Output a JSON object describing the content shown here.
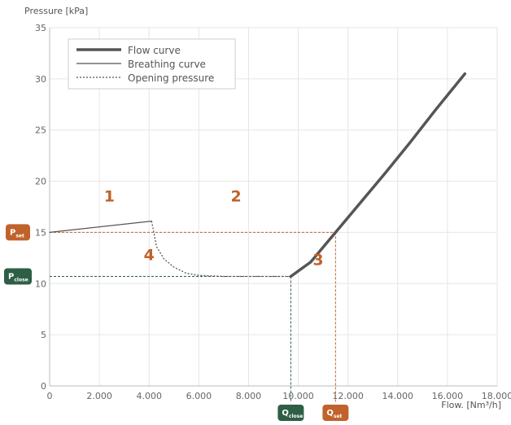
{
  "chart_data": {
    "type": "line",
    "ylabel": "Pressure [kPa]",
    "xlabel": "Flow. [Nm³/h]",
    "xlim": [
      0,
      18000
    ],
    "ylim": [
      0,
      35
    ],
    "x_ticks": [
      0,
      2000,
      4000,
      6000,
      8000,
      10000,
      12000,
      14000,
      16000,
      18000
    ],
    "x_tick_labels": [
      "0",
      "2.000",
      "4.000",
      "6.000",
      "8.000",
      "10.000",
      "12.000",
      "14.000",
      "16.000",
      "18.000"
    ],
    "y_ticks": [
      0,
      5,
      10,
      15,
      20,
      25,
      30,
      35
    ],
    "y_tick_labels": [
      "0",
      "5",
      "10",
      "15",
      "20",
      "25",
      "30",
      "35"
    ],
    "grid": true,
    "legend_position": "top-left",
    "series": [
      {
        "name": "Flow curve",
        "style": "thick-solid",
        "color": "#555555",
        "x": [
          9700,
          10500,
          11500,
          12500,
          13500,
          14500,
          15500,
          16700
        ],
        "y": [
          10.7,
          12.1,
          15.0,
          17.9,
          20.8,
          23.8,
          26.9,
          30.5
        ]
      },
      {
        "name": "Breathing curve",
        "style": "thin-solid",
        "color": "#555555",
        "x": [
          0,
          4100
        ],
        "y": [
          15.0,
          16.1
        ]
      },
      {
        "name": "Opening pressure",
        "style": "dotted",
        "color": "#555555",
        "x": [
          4100,
          4300,
          4600,
          5000,
          5500,
          6000,
          7000,
          8000,
          9700
        ],
        "y": [
          16.1,
          13.6,
          12.4,
          11.6,
          11.0,
          10.8,
          10.7,
          10.7,
          10.7
        ]
      }
    ],
    "reference_lines": [
      {
        "axis": "y",
        "value": 15.0,
        "to_x": 11500,
        "color": "#c0622a"
      },
      {
        "axis": "x",
        "value": 11500,
        "from_y": 15.0,
        "color": "#c0622a"
      },
      {
        "axis": "y",
        "value": 10.7,
        "to_x": 9700,
        "color": "#2e5e45"
      },
      {
        "axis": "x",
        "value": 9700,
        "from_y": 10.7,
        "color": "#2e5e45"
      }
    ],
    "badges": [
      {
        "main": "P",
        "sub": "set",
        "axis": "y",
        "value": 15.0,
        "color": "#c0622a"
      },
      {
        "main": "P",
        "sub": "close",
        "axis": "y",
        "value": 10.7,
        "color": "#2e5e45"
      },
      {
        "main": "Q",
        "sub": "close",
        "axis": "x",
        "value": 9700,
        "color": "#2e5e45"
      },
      {
        "main": "Q",
        "sub": "set",
        "axis": "x",
        "value": 11500,
        "color": "#c0622a"
      }
    ],
    "region_labels": [
      {
        "text": "1",
        "x": 2400,
        "y": 18.0
      },
      {
        "text": "2",
        "x": 7500,
        "y": 18.0
      },
      {
        "text": "3",
        "x": 10800,
        "y": 11.8
      },
      {
        "text": "4",
        "x": 4000,
        "y": 12.3
      }
    ],
    "region_label_color": "#c0622a"
  }
}
